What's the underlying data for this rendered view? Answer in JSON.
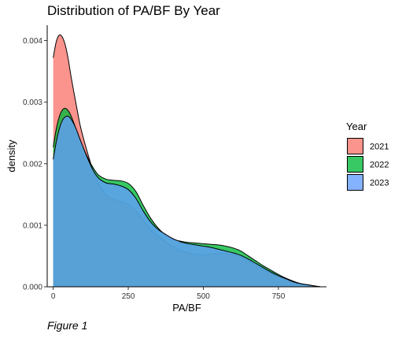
{
  "chart_data": {
    "type": "area",
    "title": "Distribution of PA/BF By Year",
    "xlabel": "PA/BF",
    "ylabel": "density",
    "xlim": [
      -20,
      910
    ],
    "ylim": [
      0,
      0.00425
    ],
    "x_ticks": [
      0,
      250,
      500,
      750
    ],
    "y_ticks": [
      0.0,
      0.001,
      0.002,
      0.003,
      0.004
    ],
    "y_tick_labels": [
      "0.000",
      "0.001",
      "0.002",
      "0.003",
      "0.004"
    ],
    "grid": false,
    "legend": {
      "title": "Year",
      "placement": "right"
    },
    "series": [
      {
        "name": "2021",
        "color": "#F8766D",
        "x": [
          0,
          10,
          20,
          30,
          40,
          50,
          60,
          75,
          90,
          110,
          130,
          150,
          175,
          200,
          225,
          250,
          275,
          300,
          325,
          350,
          375,
          400,
          425,
          450,
          475,
          500,
          525,
          550,
          575,
          600,
          625,
          650,
          675,
          700,
          725,
          750,
          775,
          800,
          825,
          850,
          875,
          890
        ],
        "y": [
          0.00372,
          0.00398,
          0.00409,
          0.00406,
          0.00393,
          0.0037,
          0.0034,
          0.003,
          0.00262,
          0.00225,
          0.00193,
          0.00168,
          0.0015,
          0.00142,
          0.00138,
          0.00134,
          0.00124,
          0.00108,
          0.00093,
          0.00082,
          0.00073,
          0.00065,
          0.00059,
          0.00055,
          0.00053,
          0.00052,
          0.00053,
          0.00054,
          0.00054,
          0.00052,
          0.00048,
          0.00042,
          0.00035,
          0.00028,
          0.00022,
          0.00017,
          0.00012,
          8e-05,
          5e-05,
          3e-05,
          1e-05,
          0.0
        ]
      },
      {
        "name": "2022",
        "color": "#00BA38",
        "x": [
          0,
          10,
          20,
          30,
          40,
          50,
          60,
          75,
          90,
          110,
          130,
          150,
          175,
          200,
          225,
          250,
          275,
          300,
          325,
          350,
          375,
          400,
          425,
          450,
          475,
          500,
          525,
          550,
          575,
          600,
          625,
          650,
          675,
          700,
          725,
          750,
          775,
          800,
          825,
          850,
          875,
          890
        ],
        "y": [
          0.00227,
          0.00256,
          0.00276,
          0.00287,
          0.0029,
          0.00286,
          0.00277,
          0.00258,
          0.00238,
          0.00215,
          0.00196,
          0.00182,
          0.00175,
          0.00173,
          0.00172,
          0.00168,
          0.00155,
          0.00132,
          0.00111,
          0.00095,
          0.00084,
          0.00077,
          0.00074,
          0.00072,
          0.00071,
          0.0007,
          0.00069,
          0.00068,
          0.00066,
          0.00063,
          0.00058,
          0.0005,
          0.00042,
          0.00034,
          0.00027,
          0.0002,
          0.00014,
          9e-05,
          5e-05,
          3e-05,
          1e-05,
          0.0
        ]
      },
      {
        "name": "2023",
        "color": "#619CFF",
        "x": [
          0,
          10,
          20,
          30,
          40,
          50,
          60,
          75,
          90,
          110,
          130,
          150,
          175,
          200,
          225,
          250,
          275,
          300,
          325,
          350,
          375,
          400,
          425,
          450,
          475,
          500,
          525,
          550,
          575,
          600,
          625,
          650,
          675,
          700,
          725,
          750,
          775,
          800,
          825,
          850,
          875,
          890
        ],
        "y": [
          0.00207,
          0.00235,
          0.00256,
          0.0027,
          0.00276,
          0.00277,
          0.00272,
          0.00258,
          0.00239,
          0.00214,
          0.00192,
          0.00177,
          0.00169,
          0.00167,
          0.00164,
          0.00158,
          0.00144,
          0.00123,
          0.00105,
          0.00093,
          0.00085,
          0.00078,
          0.00073,
          0.0007,
          0.00068,
          0.00066,
          0.00064,
          0.00061,
          0.00058,
          0.00055,
          0.00051,
          0.00045,
          0.00038,
          0.00031,
          0.00024,
          0.00018,
          0.00013,
          8e-05,
          5e-05,
          3e-05,
          1e-05,
          0.0
        ]
      }
    ],
    "caption": "Figure 1"
  }
}
